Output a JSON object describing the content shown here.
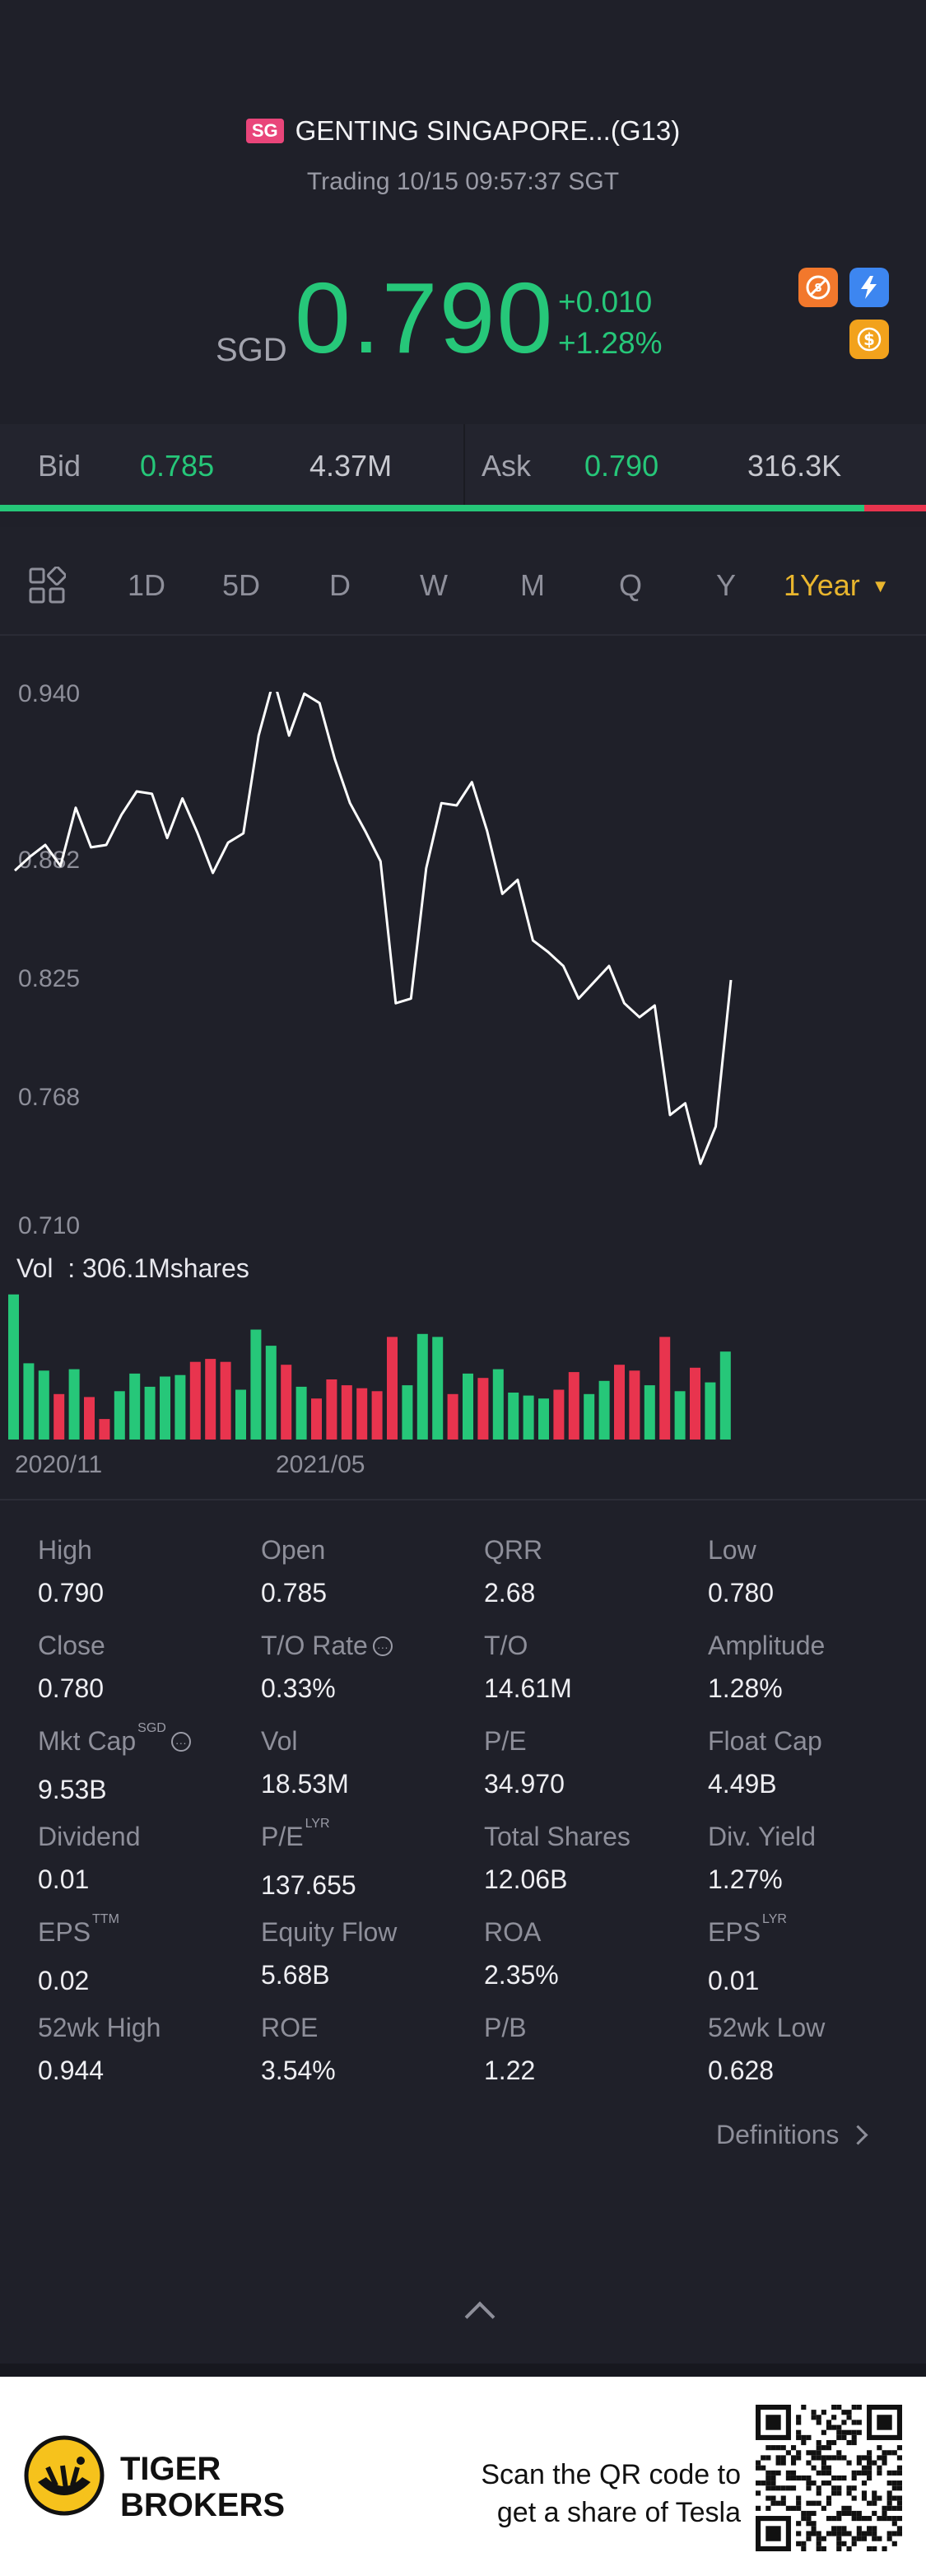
{
  "header": {
    "market_badge": "SG",
    "title": "GENTING SINGAPORE...(G13)",
    "status": "Trading 10/15 09:57:37 SGT",
    "currency": "SGD",
    "price": "0.790",
    "change": "+0.010",
    "change_pct": "+1.28%",
    "icons": [
      "no-shorting-icon",
      "flash-icon",
      "dollar-icon"
    ]
  },
  "bidask": {
    "bid_label": "Bid",
    "bid_price": "0.785",
    "bid_volume": "4.37M",
    "ask_label": "Ask",
    "ask_price": "0.790",
    "ask_volume": "316.3K",
    "bid_fraction": 0.933
  },
  "tabs": {
    "items": [
      "1D",
      "5D",
      "D",
      "W",
      "M",
      "Q",
      "Y"
    ],
    "active": "1Year"
  },
  "chart_data": {
    "type": "line",
    "ylabels": [
      "0.940",
      "0.882",
      "0.825",
      "0.768",
      "0.710"
    ],
    "ylim": [
      0.71,
      0.94
    ],
    "xlabels": [
      "2020/11",
      "2021/05"
    ],
    "values": [
      0.866,
      0.872,
      0.877,
      0.868,
      0.893,
      0.876,
      0.877,
      0.89,
      0.9,
      0.899,
      0.88,
      0.897,
      0.882,
      0.865,
      0.878,
      0.882,
      0.924,
      0.948,
      0.924,
      0.942,
      0.938,
      0.914,
      0.895,
      0.883,
      0.87,
      0.809,
      0.811,
      0.867,
      0.895,
      0.894,
      0.904,
      0.883,
      0.856,
      0.862,
      0.836,
      0.831,
      0.825,
      0.811,
      0.818,
      0.825,
      0.809,
      0.803,
      0.808,
      0.761,
      0.766,
      0.74,
      0.756,
      0.819
    ],
    "volume_label": "Vol  : 306.1Mshares",
    "volume": [
      {
        "v": 0.99,
        "up": true
      },
      {
        "v": 0.52,
        "up": true
      },
      {
        "v": 0.47,
        "up": true
      },
      {
        "v": 0.31,
        "up": false
      },
      {
        "v": 0.48,
        "up": true
      },
      {
        "v": 0.29,
        "up": false
      },
      {
        "v": 0.14,
        "up": false
      },
      {
        "v": 0.33,
        "up": true
      },
      {
        "v": 0.45,
        "up": true
      },
      {
        "v": 0.36,
        "up": true
      },
      {
        "v": 0.43,
        "up": true
      },
      {
        "v": 0.44,
        "up": true
      },
      {
        "v": 0.53,
        "up": false
      },
      {
        "v": 0.55,
        "up": false
      },
      {
        "v": 0.53,
        "up": false
      },
      {
        "v": 0.34,
        "up": true
      },
      {
        "v": 0.75,
        "up": true
      },
      {
        "v": 0.64,
        "up": true
      },
      {
        "v": 0.51,
        "up": false
      },
      {
        "v": 0.36,
        "up": true
      },
      {
        "v": 0.28,
        "up": false
      },
      {
        "v": 0.41,
        "up": false
      },
      {
        "v": 0.37,
        "up": false
      },
      {
        "v": 0.35,
        "up": false
      },
      {
        "v": 0.33,
        "up": false
      },
      {
        "v": 0.7,
        "up": false
      },
      {
        "v": 0.37,
        "up": true
      },
      {
        "v": 0.72,
        "up": true
      },
      {
        "v": 0.7,
        "up": true
      },
      {
        "v": 0.31,
        "up": false
      },
      {
        "v": 0.45,
        "up": true
      },
      {
        "v": 0.42,
        "up": false
      },
      {
        "v": 0.48,
        "up": true
      },
      {
        "v": 0.32,
        "up": true
      },
      {
        "v": 0.3,
        "up": true
      },
      {
        "v": 0.28,
        "up": true
      },
      {
        "v": 0.34,
        "up": false
      },
      {
        "v": 0.46,
        "up": false
      },
      {
        "v": 0.31,
        "up": true
      },
      {
        "v": 0.4,
        "up": true
      },
      {
        "v": 0.51,
        "up": false
      },
      {
        "v": 0.47,
        "up": false
      },
      {
        "v": 0.37,
        "up": true
      },
      {
        "v": 0.7,
        "up": false
      },
      {
        "v": 0.33,
        "up": true
      },
      {
        "v": 0.49,
        "up": false
      },
      {
        "v": 0.39,
        "up": true
      },
      {
        "v": 0.6,
        "up": true
      }
    ],
    "line_color": "#ffffff",
    "up_color": "#26c779",
    "down_color": "#e8344e"
  },
  "stats": [
    {
      "label": "High",
      "value": "0.790"
    },
    {
      "label": "Open",
      "value": "0.785"
    },
    {
      "label": "QRR",
      "value": "2.68"
    },
    {
      "label": "Low",
      "value": "0.780"
    },
    {
      "label": "Close",
      "value": "0.780"
    },
    {
      "label": "T/O Rate",
      "value": "0.33%",
      "info": true
    },
    {
      "label": "T/O",
      "value": "14.61M"
    },
    {
      "label": "Amplitude",
      "value": "1.28%"
    },
    {
      "label": "Mkt Cap",
      "value": "9.53B",
      "sup": "SGD",
      "info": true
    },
    {
      "label": "Vol",
      "value": "18.53M"
    },
    {
      "label": "P/E",
      "value": "34.970"
    },
    {
      "label": "Float Cap",
      "value": "4.49B"
    },
    {
      "label": "Dividend",
      "value": "0.01"
    },
    {
      "label": "P/E",
      "value": "137.655",
      "sup": "LYR"
    },
    {
      "label": "Total Shares",
      "value": "12.06B"
    },
    {
      "label": "Div. Yield",
      "value": "1.27%"
    },
    {
      "label": "EPS",
      "value": "0.02",
      "sup": "TTM"
    },
    {
      "label": "Equity Flow",
      "value": "5.68B"
    },
    {
      "label": "ROA",
      "value": "2.35%"
    },
    {
      "label": "EPS",
      "value": "0.01",
      "sup": "LYR"
    },
    {
      "label": "52wk High",
      "value": "0.944"
    },
    {
      "label": "ROE",
      "value": "3.54%"
    },
    {
      "label": "P/B",
      "value": "1.22"
    },
    {
      "label": "52wk Low",
      "value": "0.628"
    }
  ],
  "definitions_label": "Definitions",
  "footer": {
    "brand_line1": "TIGER",
    "brand_line2": "BROKERS",
    "scan_line1": "Scan the QR code to",
    "scan_line2": "get a share of Tesla"
  }
}
